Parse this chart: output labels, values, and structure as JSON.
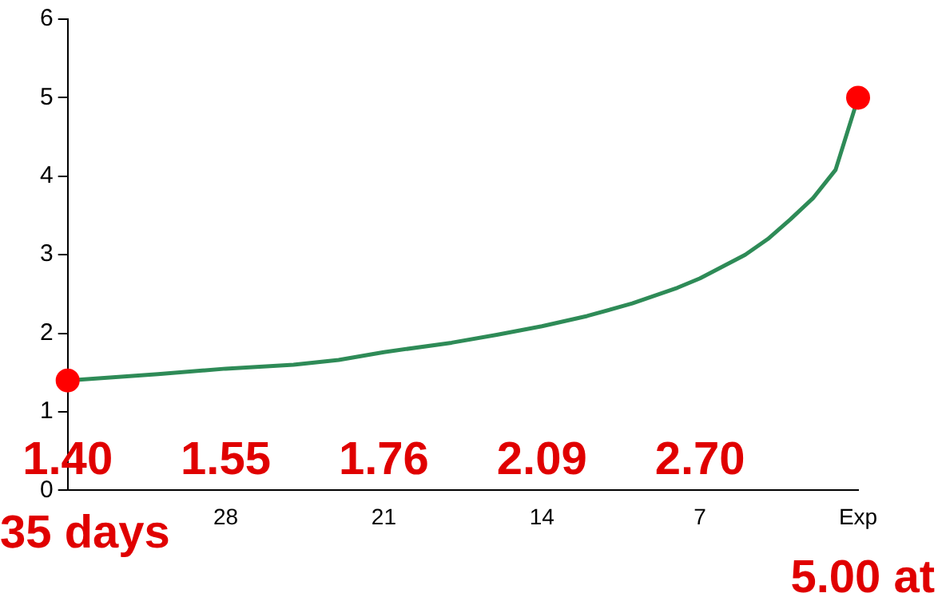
{
  "chart_data": {
    "type": "line",
    "xlim": [
      35,
      0
    ],
    "xticks": [
      {
        "value": 35,
        "label": null
      },
      28,
      21,
      14,
      7,
      {
        "value": 0,
        "label": "Exp"
      }
    ],
    "ylim": [
      0,
      6
    ],
    "yticks": [
      0,
      1,
      2,
      3,
      4,
      5,
      6
    ],
    "grid": false,
    "legend": false,
    "marker": "none",
    "series": [
      {
        "color": "#2e8b57",
        "x": [
          35,
          33,
          31,
          28,
          25,
          23,
          21,
          18,
          16,
          14,
          12,
          10,
          8,
          7,
          5,
          4,
          3,
          2,
          1,
          0
        ],
        "values": [
          1.4,
          1.44,
          1.48,
          1.55,
          1.6,
          1.66,
          1.76,
          1.88,
          1.98,
          2.09,
          2.22,
          2.38,
          2.58,
          2.7,
          3.0,
          3.2,
          3.45,
          3.72,
          4.08,
          5.0
        ]
      },
      {
        "type": "scatter",
        "color": "#ff0000",
        "marker": "circle",
        "x": [
          35,
          0
        ],
        "values": [
          1.4,
          5.0
        ]
      }
    ],
    "annotations": [
      "1.40",
      "1.55",
      "1.76",
      "2.09",
      "2.70",
      "35 days",
      "5.00 at"
    ]
  }
}
